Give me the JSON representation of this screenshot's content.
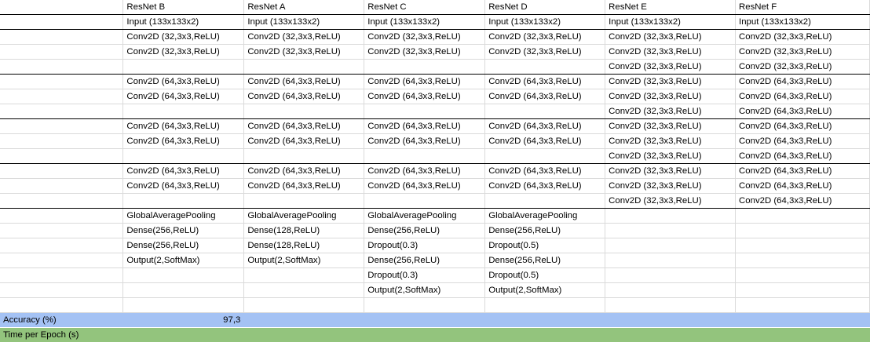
{
  "sheet": {
    "columns": [
      "",
      "ResNet B",
      "ResNet A",
      "ResNet C",
      "ResNet D",
      "ResNet E",
      "ResNet F"
    ],
    "rows": [
      {
        "cells": [
          "",
          "Input (133x133x2)",
          "Input (133x133x2)",
          "Input (133x133x2)",
          "Input (133x133x2)",
          "Input (133x133x2)",
          "Input (133x133x2)"
        ],
        "thick": true
      },
      {
        "cells": [
          "",
          "Conv2D (32,3x3,ReLU)",
          "Conv2D (32,3x3,ReLU)",
          "Conv2D (32,3x3,ReLU)",
          "Conv2D (32,3x3,ReLU)",
          "Conv2D (32,3x3,ReLU)",
          "Conv2D (32,3x3,ReLU)"
        ]
      },
      {
        "cells": [
          "",
          "Conv2D (32,3x3,ReLU)",
          "Conv2D (32,3x3,ReLU)",
          "Conv2D (32,3x3,ReLU)",
          "Conv2D (32,3x3,ReLU)",
          "Conv2D (32,3x3,ReLU)",
          "Conv2D (32,3x3,ReLU)"
        ]
      },
      {
        "cells": [
          "",
          "",
          "",
          "",
          "",
          "Conv2D (32,3x3,ReLU)",
          "Conv2D (32,3x3,ReLU)"
        ],
        "thick": true
      },
      {
        "cells": [
          "",
          "Conv2D (64,3x3,ReLU)",
          "Conv2D (64,3x3,ReLU)",
          "Conv2D (64,3x3,ReLU)",
          "Conv2D (64,3x3,ReLU)",
          "Conv2D (32,3x3,ReLU)",
          "Conv2D (64,3x3,ReLU)"
        ]
      },
      {
        "cells": [
          "",
          "Conv2D (64,3x3,ReLU)",
          "Conv2D (64,3x3,ReLU)",
          "Conv2D (64,3x3,ReLU)",
          "Conv2D (64,3x3,ReLU)",
          "Conv2D (32,3x3,ReLU)",
          "Conv2D (64,3x3,ReLU)"
        ]
      },
      {
        "cells": [
          "",
          "",
          "",
          "",
          "",
          "Conv2D (32,3x3,ReLU)",
          "Conv2D (64,3x3,ReLU)"
        ],
        "thick": true
      },
      {
        "cells": [
          "",
          "Conv2D (64,3x3,ReLU)",
          "Conv2D (64,3x3,ReLU)",
          "Conv2D (64,3x3,ReLU)",
          "Conv2D (64,3x3,ReLU)",
          "Conv2D (32,3x3,ReLU)",
          "Conv2D (64,3x3,ReLU)"
        ]
      },
      {
        "cells": [
          "",
          "Conv2D (64,3x3,ReLU)",
          "Conv2D (64,3x3,ReLU)",
          "Conv2D (64,3x3,ReLU)",
          "Conv2D (64,3x3,ReLU)",
          "Conv2D (32,3x3,ReLU)",
          "Conv2D (64,3x3,ReLU)"
        ]
      },
      {
        "cells": [
          "",
          "",
          "",
          "",
          "",
          "Conv2D (32,3x3,ReLU)",
          "Conv2D (64,3x3,ReLU)"
        ],
        "thick": true
      },
      {
        "cells": [
          "",
          "Conv2D (64,3x3,ReLU)",
          "Conv2D (64,3x3,ReLU)",
          "Conv2D (64,3x3,ReLU)",
          "Conv2D (64,3x3,ReLU)",
          "Conv2D (32,3x3,ReLU)",
          "Conv2D (64,3x3,ReLU)"
        ]
      },
      {
        "cells": [
          "",
          "Conv2D (64,3x3,ReLU)",
          "Conv2D (64,3x3,ReLU)",
          "Conv2D (64,3x3,ReLU)",
          "Conv2D (64,3x3,ReLU)",
          "Conv2D (32,3x3,ReLU)",
          "Conv2D (64,3x3,ReLU)"
        ]
      },
      {
        "cells": [
          "",
          "",
          "",
          "",
          "",
          "Conv2D (32,3x3,ReLU)",
          "Conv2D (64,3x3,ReLU)"
        ],
        "thick": true
      },
      {
        "cells": [
          "",
          "GlobalAveragePooling",
          "GlobalAveragePooling",
          "GlobalAveragePooling",
          "GlobalAveragePooling",
          "",
          ""
        ]
      },
      {
        "cells": [
          "",
          "Dense(256,ReLU)",
          "Dense(128,ReLU)",
          "Dense(256,ReLU)",
          "Dense(256,ReLU)",
          "",
          ""
        ]
      },
      {
        "cells": [
          "",
          "Dense(256,ReLU)",
          "Dense(128,ReLU)",
          "Dropout(0.3)",
          "Dropout(0.5)",
          "",
          ""
        ]
      },
      {
        "cells": [
          "",
          "Output(2,SoftMax)",
          "Output(2,SoftMax)",
          "Dense(256,ReLU)",
          "Dense(256,ReLU)",
          "",
          ""
        ]
      },
      {
        "cells": [
          "",
          "",
          "",
          "Dropout(0.3)",
          "Dropout(0.5)",
          "",
          ""
        ]
      },
      {
        "cells": [
          "",
          "",
          "",
          "Output(2,SoftMax)",
          "Output(2,SoftMax)",
          "",
          ""
        ]
      },
      {
        "cells": [
          "",
          "",
          "",
          "",
          "",
          "",
          ""
        ]
      },
      {
        "cells": [
          "Accuracy (%)",
          "97,3",
          "",
          "",
          "",
          "",
          ""
        ],
        "fill": "#a4c2f4",
        "numeric_col": 1
      },
      {
        "cells": [
          "Time per Epoch (s)",
          "",
          "",
          "",
          "",
          "",
          ""
        ],
        "fill": "#93c47d"
      }
    ]
  }
}
